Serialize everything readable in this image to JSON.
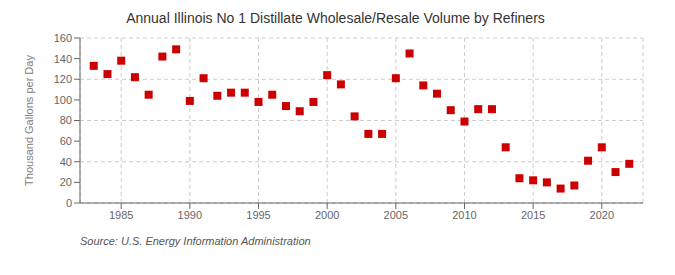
{
  "chart_data": {
    "type": "scatter",
    "title": "Annual Illinois No 1 Distillate Wholesale/Resale Volume by Refiners",
    "ylabel": "Thousand Gallons per Day",
    "annotation": "Source: U.S. Energy Information Administration",
    "x": [
      1983,
      1984,
      1985,
      1986,
      1987,
      1988,
      1989,
      1990,
      1991,
      1992,
      1993,
      1994,
      1995,
      1996,
      1997,
      1998,
      1999,
      2000,
      2001,
      2002,
      2003,
      2004,
      2005,
      2006,
      2007,
      2008,
      2009,
      2010,
      2011,
      2012,
      2013,
      2014,
      2015,
      2016,
      2017,
      2018,
      2019,
      2020,
      2021,
      2022
    ],
    "values": [
      133,
      125,
      138,
      122,
      105,
      142,
      149,
      99,
      121,
      104,
      107,
      107,
      98,
      105,
      94,
      89,
      98,
      124,
      115,
      84,
      67,
      67,
      121,
      145,
      114,
      106,
      90,
      79,
      91,
      91,
      54,
      24,
      22,
      20,
      14,
      17,
      41,
      54,
      30,
      38
    ],
    "color": "#cc0000",
    "marker": "square",
    "xlim": [
      1982,
      2023
    ],
    "ylim": [
      0,
      160
    ],
    "xticks": [
      1985,
      1990,
      1995,
      2000,
      2005,
      2010,
      2015,
      2020
    ],
    "yticks": [
      0,
      20,
      40,
      60,
      80,
      100,
      120,
      140,
      160
    ],
    "grid": true
  }
}
